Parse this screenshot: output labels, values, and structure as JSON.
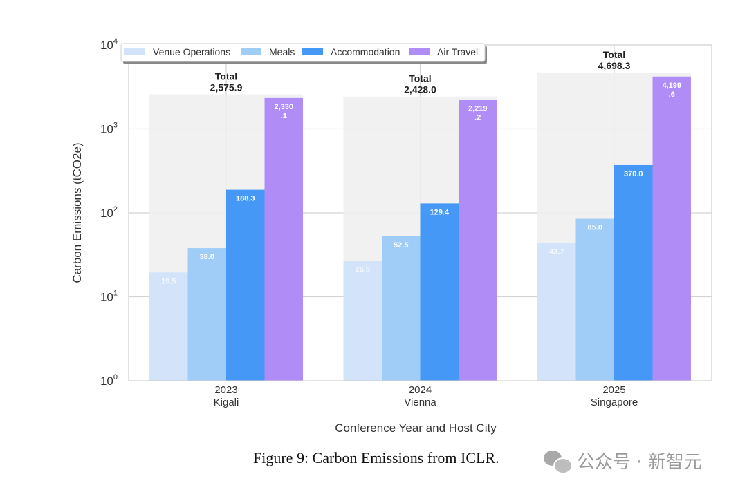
{
  "chart_data": {
    "type": "bar",
    "yscale": "log",
    "title": "",
    "xlabel": "Conference Year and Host City",
    "ylabel": "Carbon Emissions (tCO2e)",
    "ylim": [
      1,
      10000
    ],
    "yticks": [
      {
        "base": "10",
        "exp": "0"
      },
      {
        "base": "10",
        "exp": "1"
      },
      {
        "base": "10",
        "exp": "2"
      },
      {
        "base": "10",
        "exp": "3"
      },
      {
        "base": "10",
        "exp": "4"
      }
    ],
    "grid": true,
    "legend_position": "top-left",
    "categories": [
      {
        "year": "2023",
        "city": "Kigali"
      },
      {
        "year": "2024",
        "city": "Vienna"
      },
      {
        "year": "2025",
        "city": "Singapore"
      }
    ],
    "series": [
      {
        "name": "Venue Operations",
        "color": "#d3e4fa",
        "values": [
          19.5,
          26.9,
          43.7
        ],
        "labels": [
          "19.5",
          "26.9",
          "43.7"
        ]
      },
      {
        "name": "Meals",
        "color": "#9fcdf7",
        "values": [
          38.0,
          52.5,
          85.0
        ],
        "labels": [
          "38.0",
          "52.5",
          "85.0"
        ]
      },
      {
        "name": "Accommodation",
        "color": "#4598f5",
        "values": [
          188.3,
          129.4,
          370.0
        ],
        "labels": [
          "188.3",
          "129.4",
          "370.0"
        ]
      },
      {
        "name": "Air Travel",
        "color": "#b08cf7",
        "values": [
          2330.1,
          2219.2,
          4199.6
        ],
        "labels": [
          "2,330\n.1",
          "2,219\n.2",
          "4,199\n.6"
        ]
      }
    ],
    "totals": {
      "heading": "Total",
      "values": [
        2575.9,
        2428.0,
        4698.3
      ],
      "labels": [
        "2,575.9",
        "2,428.0",
        "4,698.3"
      ]
    }
  },
  "caption": "Figure 9: Carbon Emissions from ICLR.",
  "watermark": "公众号 · 新智元"
}
